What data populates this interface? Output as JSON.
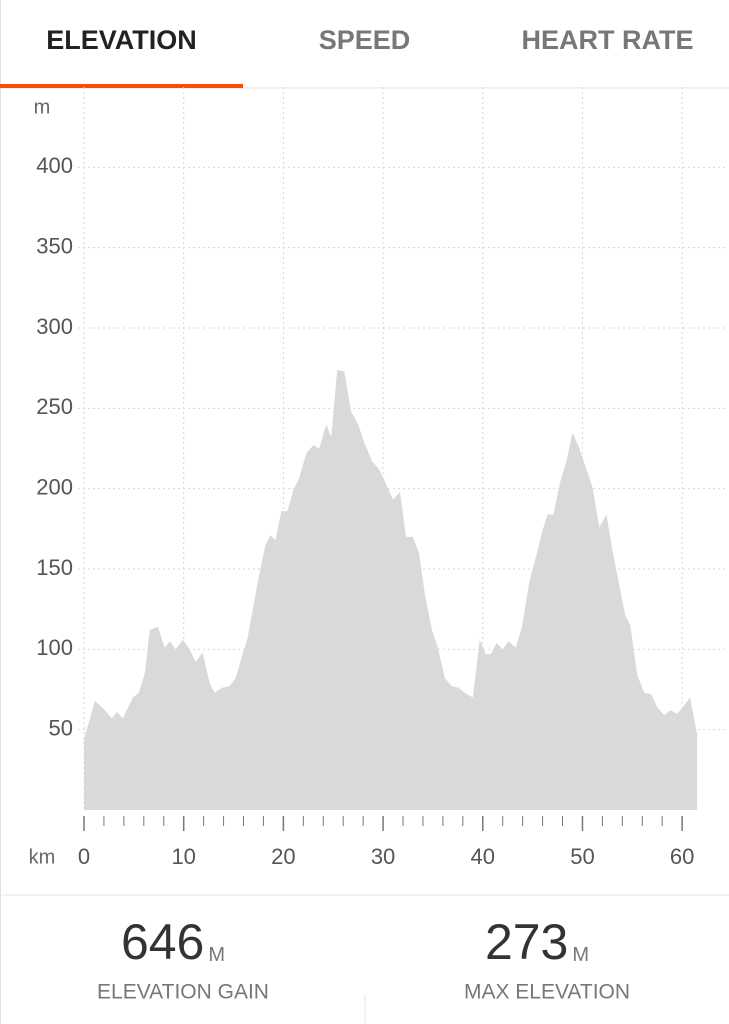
{
  "tabs": [
    {
      "label": "ELEVATION",
      "active": true
    },
    {
      "label": "SPEED",
      "active": false
    },
    {
      "label": "HEART RATE",
      "active": false
    }
  ],
  "chart_data": {
    "type": "area",
    "y_unit": "m",
    "x_unit": "km",
    "color": "#d9d9d9",
    "x": [
      0,
      1.1,
      2.1,
      2.8,
      3.3,
      3.9,
      4.9,
      5.5,
      6.1,
      6.6,
      7.4,
      8.1,
      8.6,
      9.2,
      9.9,
      10.6,
      11.2,
      11.9,
      12.6,
      13.1,
      13.8,
      14.6,
      15.2,
      16.4,
      17.5,
      18.2,
      18.7,
      19.2,
      19.8,
      20.4,
      21.0,
      21.6,
      22.3,
      23.0,
      23.6,
      24.3,
      24.8,
      25.4,
      26.1,
      26.8,
      27.5,
      28.1,
      28.9,
      29.6,
      30.3,
      31.0,
      31.7,
      32.3,
      33.0,
      33.6,
      34.2,
      34.9,
      35.5,
      36.2,
      36.9,
      37.6,
      38.2,
      39.0,
      39.7,
      40.3,
      40.8,
      41.4,
      42.0,
      42.6,
      43.3,
      43.9,
      44.7,
      45.4,
      46.0,
      46.5,
      47.1,
      47.8,
      48.4,
      49.0,
      49.7,
      50.4,
      51.0,
      51.7,
      52.4,
      53.0,
      53.6,
      54.3,
      54.8,
      55.5,
      56.2,
      56.9,
      57.5,
      58.2,
      58.8,
      59.5,
      60.2,
      60.8,
      61.5
    ],
    "values": [
      44,
      68,
      62,
      57,
      61,
      57,
      70,
      73,
      85,
      112,
      114,
      101,
      105,
      100,
      106,
      100,
      92,
      98,
      79,
      73,
      76,
      77,
      82,
      107,
      144,
      165,
      171,
      168,
      186,
      186,
      199,
      207,
      222,
      227,
      225,
      240,
      232,
      274,
      273,
      248,
      240,
      229,
      217,
      212,
      203,
      193,
      198,
      170,
      170,
      160,
      134,
      112,
      101,
      82,
      77,
      76,
      73,
      70,
      106,
      97,
      97,
      104,
      100,
      105,
      101,
      113,
      143,
      159,
      174,
      184,
      184,
      205,
      217,
      235,
      225,
      212,
      201,
      176,
      184,
      162,
      143,
      121,
      115,
      84,
      73,
      72,
      64,
      59,
      62,
      60,
      65,
      70,
      47
    ],
    "xlim": [
      0,
      64.5
    ],
    "ylim": [
      0,
      450
    ],
    "xticks": [
      0,
      10,
      20,
      30,
      40,
      50,
      60
    ],
    "xminorticks": [
      0,
      2,
      4,
      6,
      8,
      10,
      12,
      14,
      16,
      18,
      20,
      22,
      24,
      26,
      28,
      30,
      32,
      34,
      36,
      38,
      40,
      42,
      44,
      46,
      48,
      50,
      52,
      54,
      56,
      58,
      60
    ],
    "yticks": [
      50,
      100,
      150,
      200,
      250,
      300,
      350,
      400
    ],
    "grid": true
  },
  "stats": [
    {
      "value": 646,
      "unit": "M",
      "label": "ELEVATION GAIN"
    },
    {
      "value": 273,
      "unit": "M",
      "label": "MAX ELEVATION"
    }
  ]
}
